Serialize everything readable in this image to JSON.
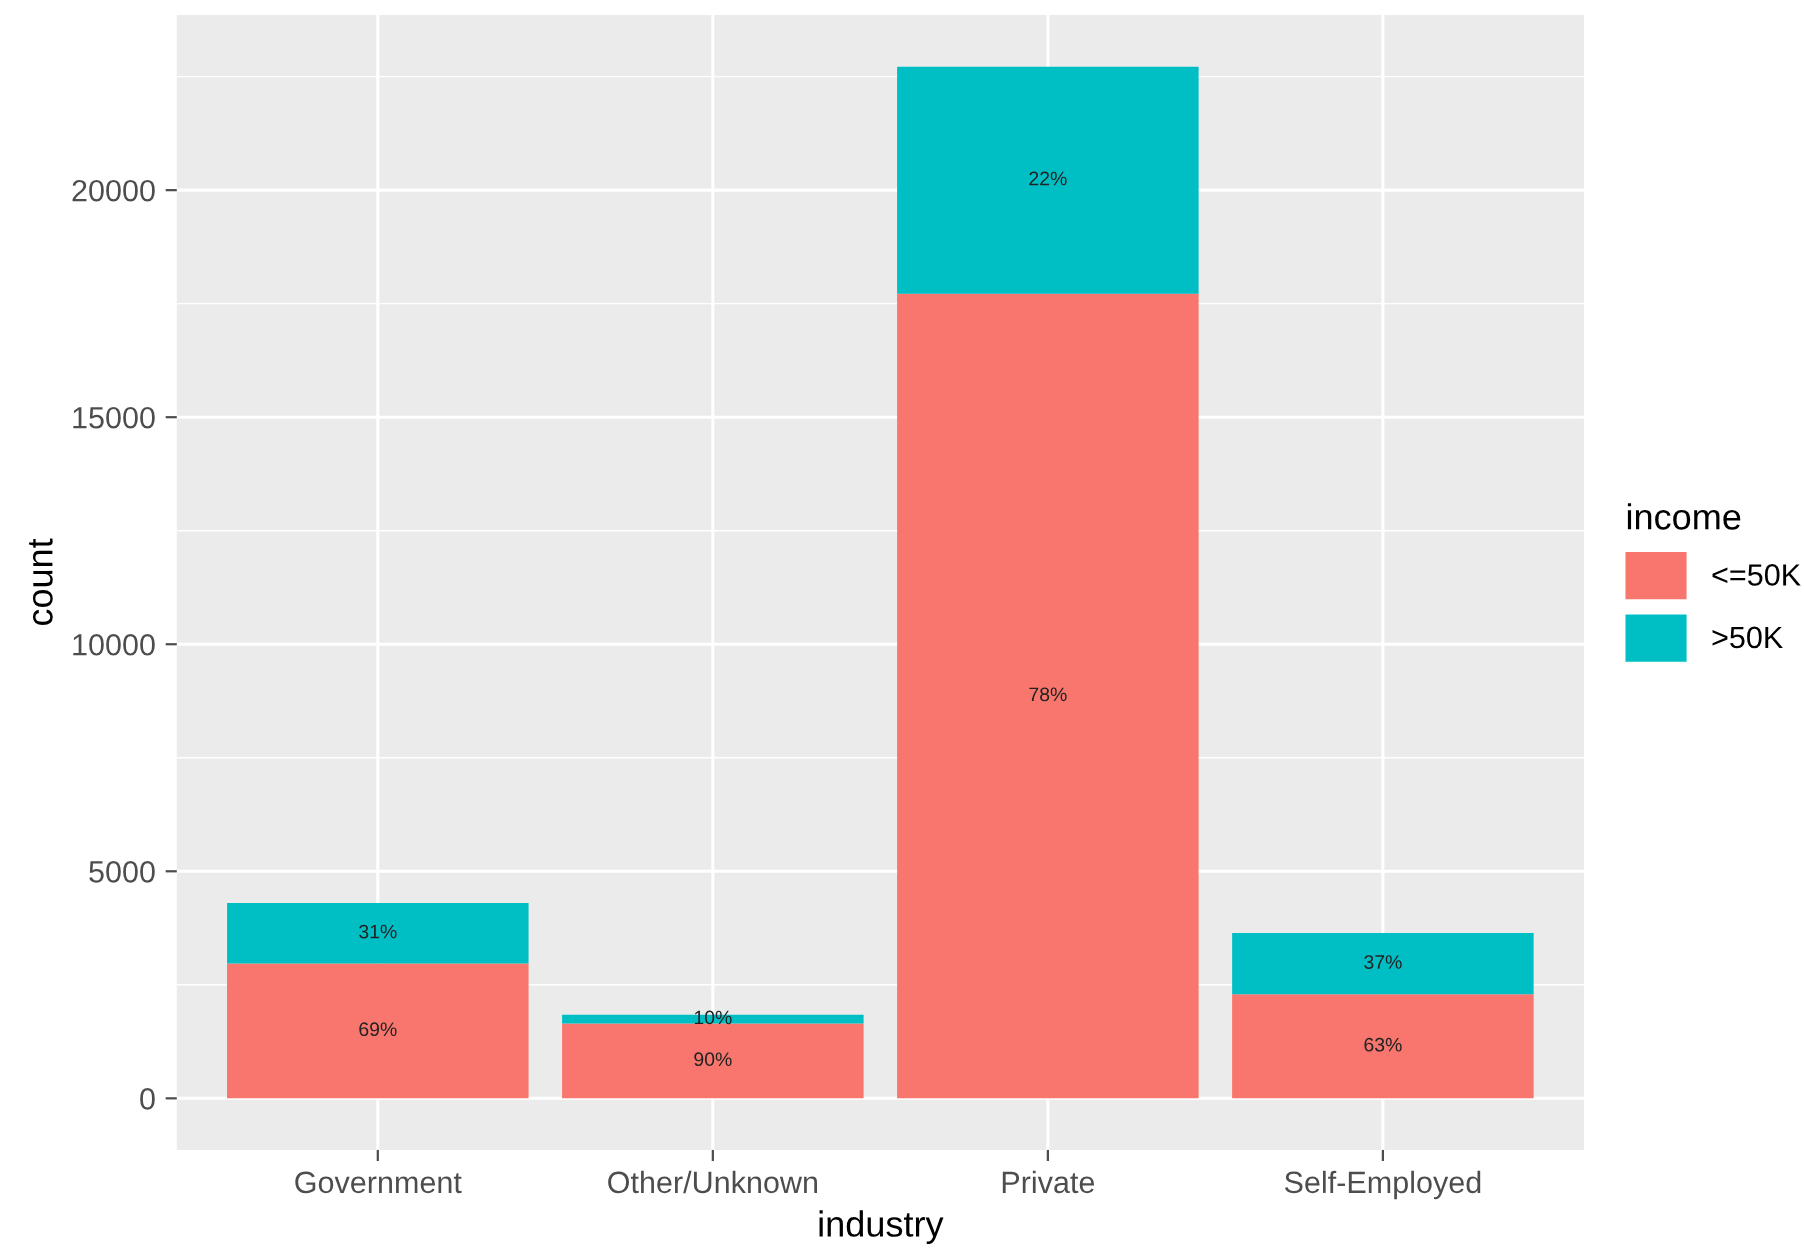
{
  "chart_data": {
    "type": "bar",
    "stacked": true,
    "xlabel": "industry",
    "ylabel": "count",
    "legend_title": "income",
    "legend": "right",
    "grid": true,
    "categories": [
      "Government",
      "Other/Unknown",
      "Private",
      "Self-Employed"
    ],
    "series": [
      {
        "name": "<=50K",
        "color": "#f8766d",
        "values": [
          2970,
          1650,
          17720,
          2290
        ]
      },
      {
        "name": ">50K",
        "color": "#00bfc4",
        "values": [
          1330,
          190,
          5000,
          1350
        ]
      }
    ],
    "annotations": [
      "69%",
      "90%",
      "78%",
      "63%",
      "31%",
      "10%",
      "22%",
      "37%"
    ],
    "ylim": [
      -1136,
      23856
    ],
    "yticks": [
      0,
      5000,
      10000,
      15000,
      20000
    ]
  }
}
